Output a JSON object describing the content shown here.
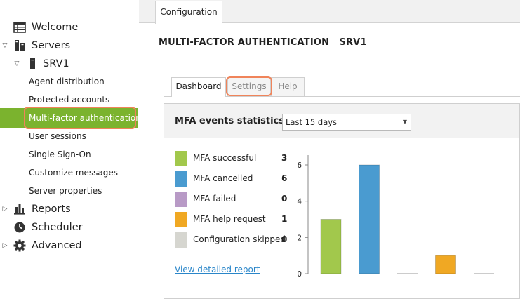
{
  "sidebar": {
    "welcome": "Welcome",
    "servers": "Servers",
    "srv1": "SRV1",
    "items": [
      {
        "label": "Agent distribution"
      },
      {
        "label": "Protected accounts"
      },
      {
        "label": "Multi-factor authentication"
      },
      {
        "label": "User sessions"
      },
      {
        "label": "Single Sign-On"
      },
      {
        "label": "Customize messages"
      },
      {
        "label": "Server properties"
      }
    ],
    "reports": "Reports",
    "scheduler": "Scheduler",
    "advanced": "Advanced"
  },
  "top_tab": "Configuration",
  "page_title": "MULTI-FACTOR AUTHENTICATION   SRV1",
  "tabs": [
    {
      "label": "Dashboard"
    },
    {
      "label": "Settings"
    },
    {
      "label": "Help"
    }
  ],
  "panel": {
    "title": "MFA events statistics",
    "range_select": "Last 15 days",
    "report_link": "View detailed report"
  },
  "colors": {
    "accent_green": "#7bb32e",
    "highlight": "#f0845a",
    "link": "#2a86c9"
  },
  "chart_data": {
    "type": "bar",
    "categories": [
      "MFA successful",
      "MFA cancelled",
      "MFA failed",
      "MFA help request",
      "Configuration skipped"
    ],
    "values": [
      3,
      6,
      0,
      1,
      0
    ],
    "colors": [
      "#a2c84c",
      "#4a9bd0",
      "#b89ac6",
      "#f0a823",
      "#d6d6d0"
    ],
    "y_ticks": [
      0,
      2,
      4,
      6
    ],
    "ylim": [
      0,
      6
    ],
    "grid": false,
    "legend": "left"
  }
}
